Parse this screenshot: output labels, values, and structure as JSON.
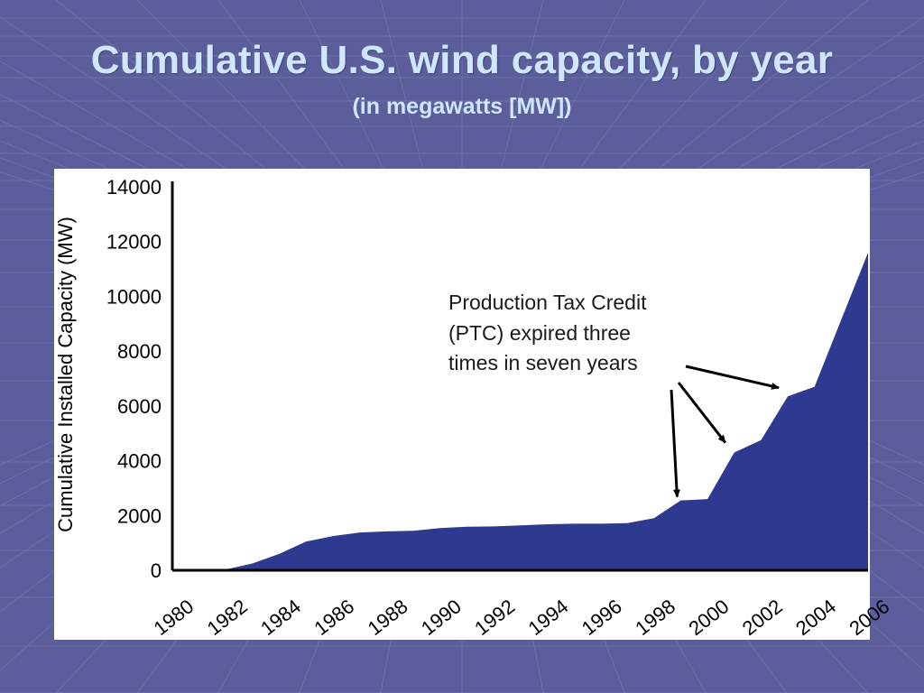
{
  "slide": {
    "title": "Cumulative U.S. wind capacity, by year",
    "subtitle": "(in megawatts [MW])"
  },
  "colors": {
    "background": "#5b5e9a",
    "title_text": "#cfe6ff",
    "area_fill": "#2e3a8f",
    "panel": "#ffffff"
  },
  "chart_data": {
    "type": "area",
    "title": "",
    "xlabel": "",
    "ylabel": "Cumulative Installed Capacity (MW)",
    "xlim": [
      1980,
      2006
    ],
    "ylim": [
      0,
      14000
    ],
    "xticks": [
      "1980",
      "1982",
      "1984",
      "1986",
      "1988",
      "1990",
      "1992",
      "1994",
      "1996",
      "1998",
      "2000",
      "2002",
      "2004",
      "2006"
    ],
    "yticks": [
      "0",
      "2000",
      "4000",
      "6000",
      "8000",
      "10000",
      "12000",
      "14000"
    ],
    "grid": false,
    "series": [
      {
        "x": [
          1980,
          1981,
          1982,
          1983,
          1984,
          1985,
          1986,
          1987,
          1988,
          1989,
          1990,
          1991,
          1992,
          1993,
          1994,
          1995,
          1996,
          1997,
          1998,
          1999,
          2000,
          2001,
          2002,
          2003,
          2004,
          2005,
          2006
        ],
        "values": [
          0,
          0,
          30,
          250,
          600,
          1050,
          1250,
          1380,
          1420,
          1440,
          1540,
          1590,
          1600,
          1640,
          1680,
          1700,
          1700,
          1720,
          1900,
          2550,
          2600,
          4300,
          4750,
          6350,
          6700,
          9150,
          11600
        ]
      }
    ],
    "annotation": {
      "lines": [
        "Production Tax Credit",
        "(PTC) expired three",
        "times in seven years"
      ],
      "arrow_targets": [
        {
          "x": 1999,
          "y": 2550
        },
        {
          "x": 2001,
          "y": 4400
        },
        {
          "x": 2003,
          "y": 6400
        }
      ]
    }
  }
}
